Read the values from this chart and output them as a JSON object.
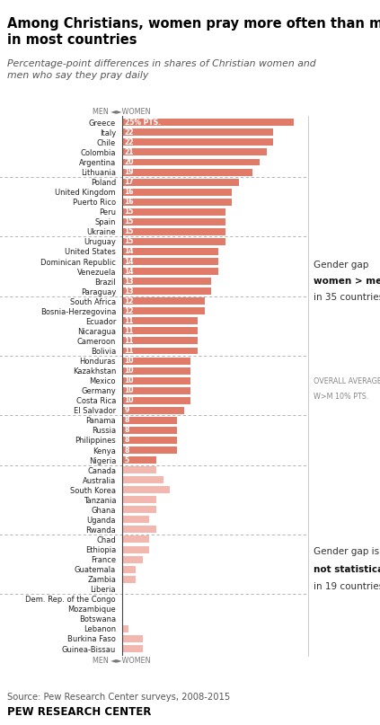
{
  "title": "Among Christians, women pray more often than men\nin most countries",
  "subtitle": "Percentage-point differences in shares of Christian women and\nmen who say they pray daily",
  "source": "Source: Pew Research Center surveys, 2008-2015",
  "footer": "PEW RESEARCH CENTER",
  "countries": [
    "Greece",
    "Italy",
    "Chile",
    "Colombia",
    "Argentina",
    "Lithuania",
    "Poland",
    "United Kingdom",
    "Puerto Rico",
    "Peru",
    "Spain",
    "Ukraine",
    "Uruguay",
    "United States",
    "Dominican Republic",
    "Venezuela",
    "Brazil",
    "Paraguay",
    "South Africa",
    "Bosnia-Herzegovina",
    "Ecuador",
    "Nicaragua",
    "Cameroon",
    "Bolivia",
    "Honduras",
    "Kazakhstan",
    "Mexico",
    "Germany",
    "Costa Rica",
    "El Salvador",
    "Panama",
    "Russia",
    "Philippines",
    "Kenya",
    "Nigeria",
    "Canada",
    "Australia",
    "South Korea",
    "Tanzania",
    "Ghana",
    "Uganda",
    "Rwanda",
    "Chad",
    "Ethiopia",
    "France",
    "Guatemala",
    "Zambia",
    "Liberia",
    "Dem. Rep. of the Congo",
    "Mozambique",
    "Botswana",
    "Lebanon",
    "Burkina Faso",
    "Guinea-Bissau"
  ],
  "values": [
    25,
    22,
    22,
    21,
    20,
    19,
    17,
    16,
    16,
    15,
    15,
    15,
    15,
    14,
    14,
    14,
    13,
    13,
    12,
    12,
    11,
    11,
    11,
    11,
    10,
    10,
    10,
    10,
    10,
    9,
    8,
    8,
    8,
    8,
    5,
    5,
    6,
    7,
    5,
    5,
    4,
    5,
    4,
    4,
    3,
    2,
    2,
    0,
    0,
    0,
    0,
    1,
    3,
    3
  ],
  "significant": [
    true,
    true,
    true,
    true,
    true,
    true,
    true,
    true,
    true,
    true,
    true,
    true,
    true,
    true,
    true,
    true,
    true,
    true,
    true,
    true,
    true,
    true,
    true,
    true,
    true,
    true,
    true,
    true,
    true,
    true,
    true,
    true,
    true,
    true,
    true,
    false,
    false,
    false,
    false,
    false,
    false,
    false,
    false,
    false,
    false,
    false,
    false,
    false,
    false,
    false,
    false,
    false,
    false,
    false
  ],
  "color_significant": "#e07b6a",
  "color_not_significant": "#f2b8b0",
  "separator_after": [
    5,
    11,
    17,
    23,
    29,
    34,
    41,
    47
  ],
  "bar_height": 0.72,
  "xlim_max": 27,
  "ann1_rows": [
    13,
    19
  ],
  "ann2_rows": [
    25,
    29
  ],
  "ann3_rows": [
    43,
    47
  ]
}
